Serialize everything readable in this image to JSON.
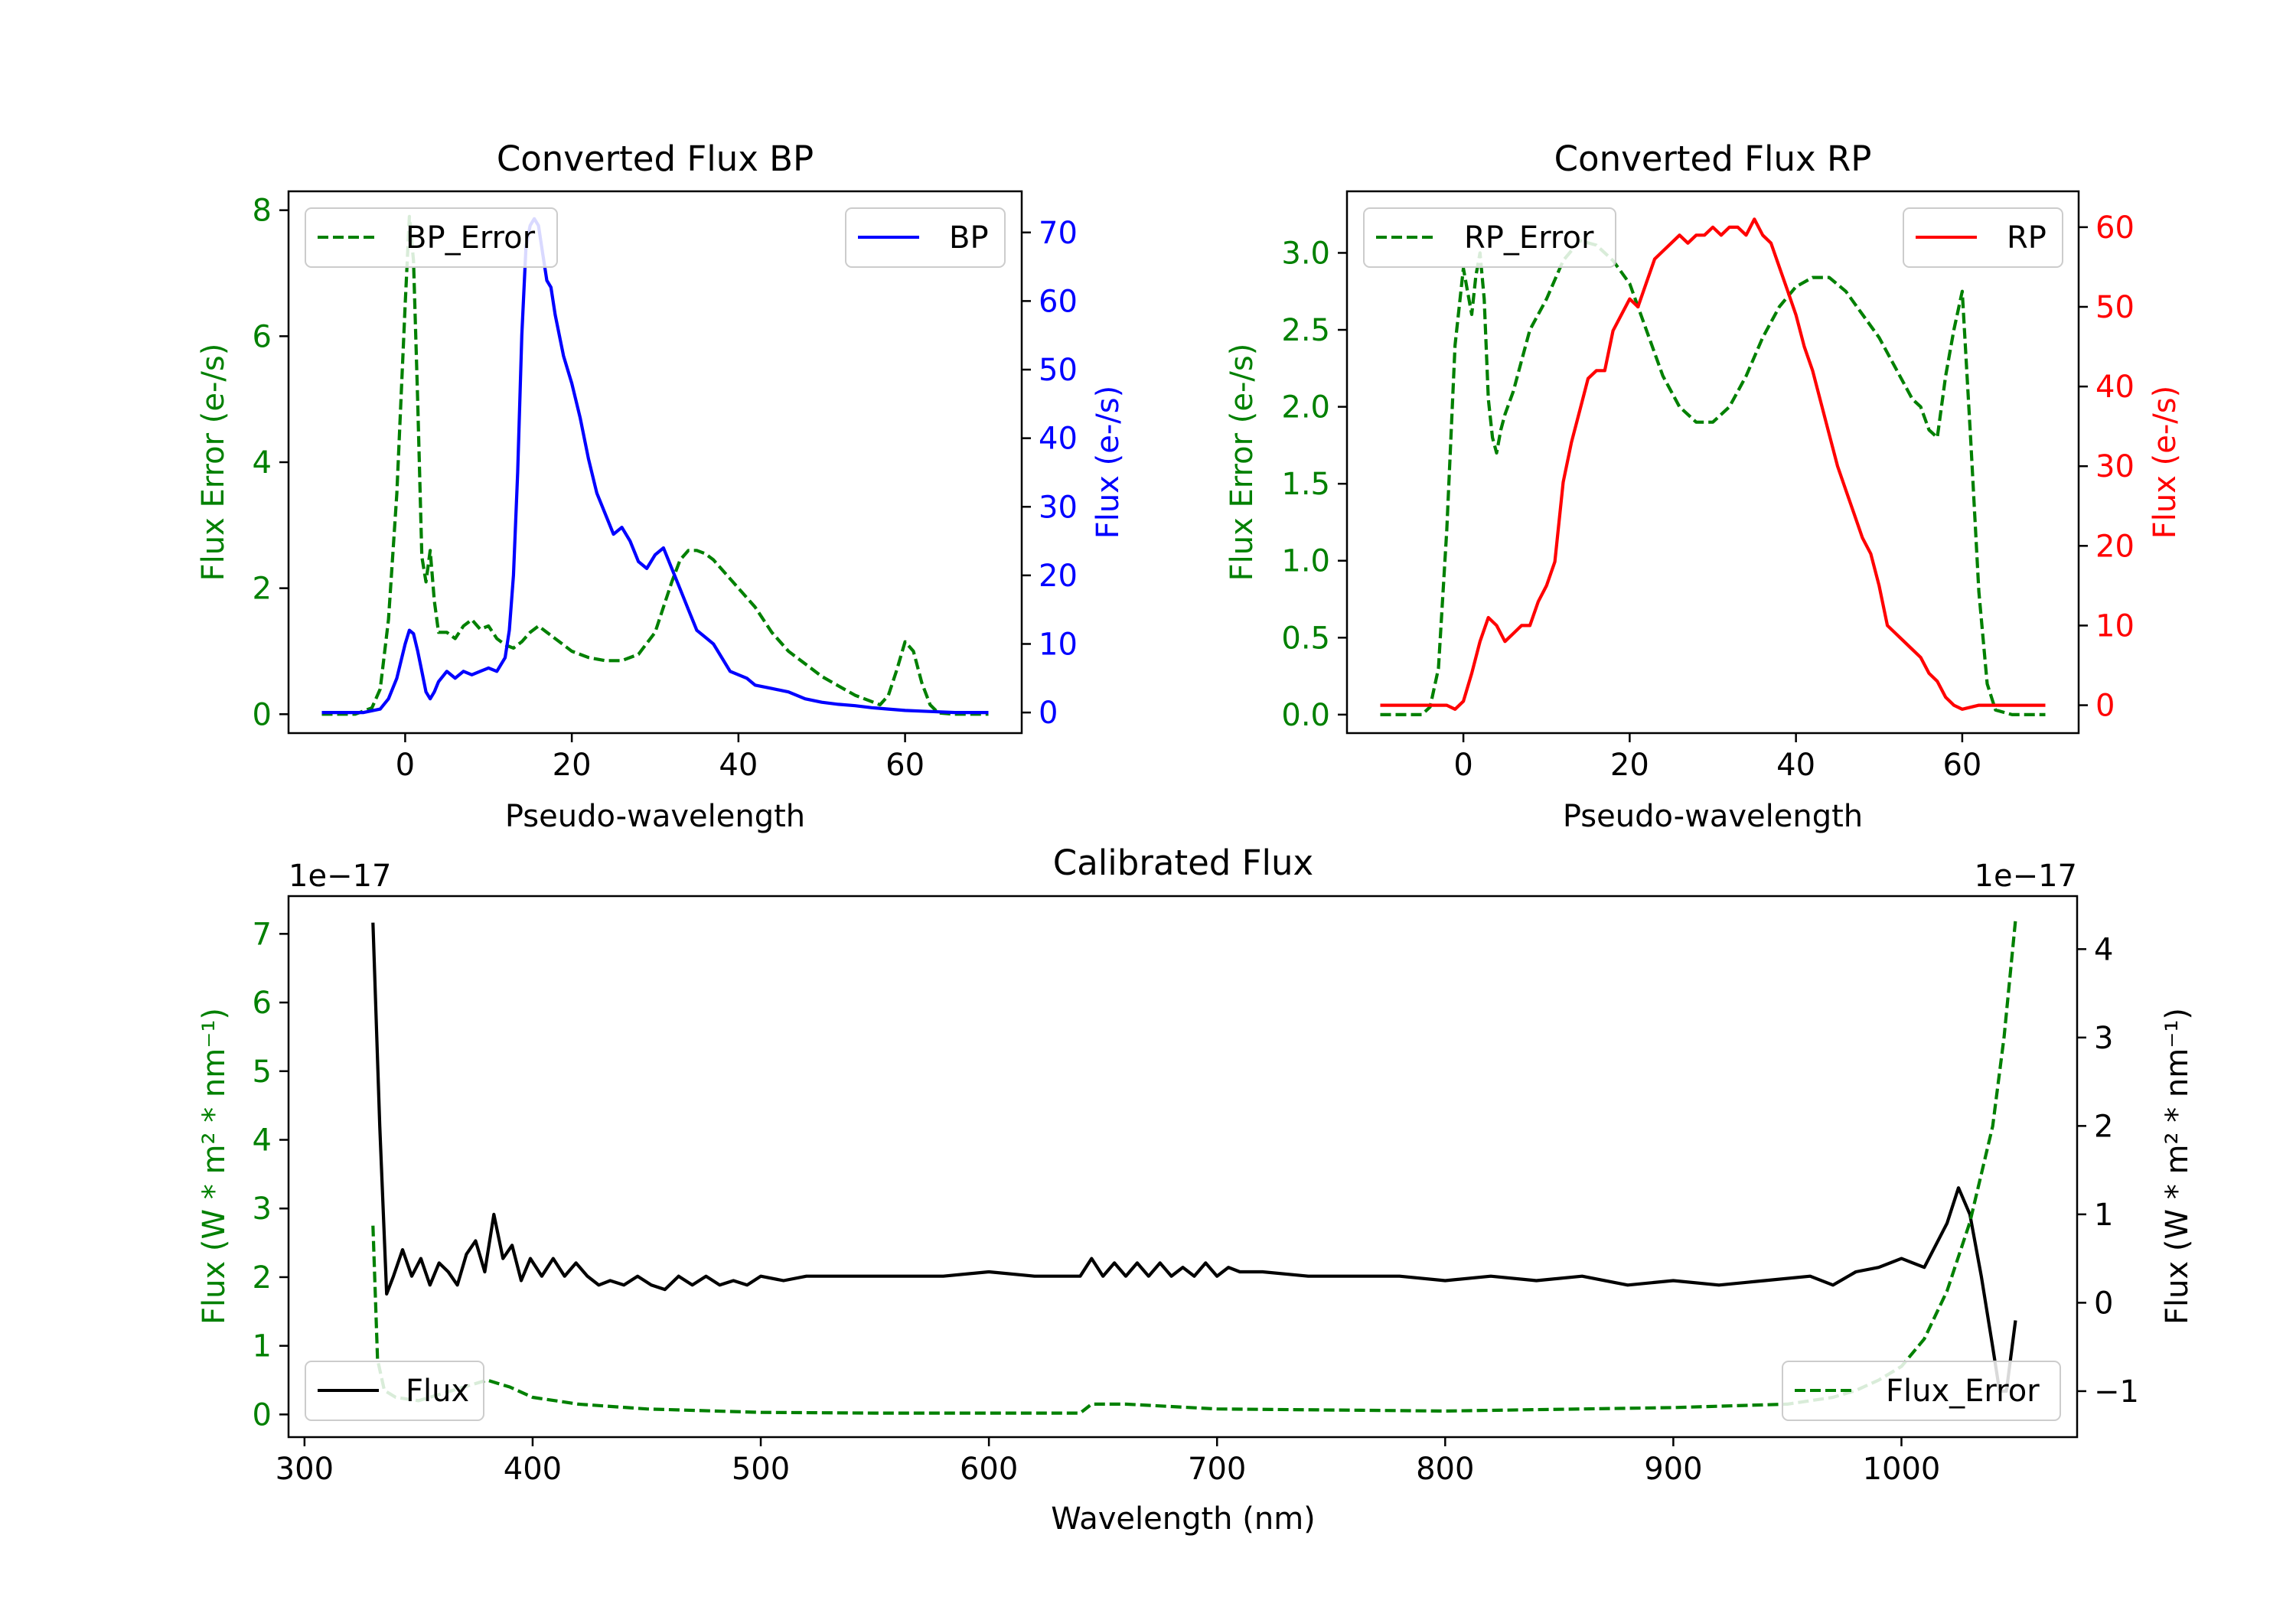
{
  "chart_data": [
    {
      "type": "line",
      "title": "Converted Flux BP",
      "xlabel": "Pseudo-wavelength",
      "xlim": [
        -14,
        74
      ],
      "xticks": [
        0,
        20,
        40,
        60
      ],
      "left_axis": {
        "label": "Flux Error (e-/s)",
        "color": "#008000",
        "ylim": [
          -0.3,
          8.3
        ],
        "ticks": [
          0,
          2,
          4,
          6,
          8
        ]
      },
      "right_axis": {
        "label": "Flux (e-/s)",
        "color": "#0000ff",
        "ylim": [
          -3,
          76
        ],
        "ticks": [
          0,
          10,
          20,
          30,
          40,
          50,
          60,
          70
        ]
      },
      "series": [
        {
          "name": "BP_Error",
          "axis": "left",
          "style": "dashed",
          "color": "#008000",
          "x": [
            -10,
            -6,
            -4,
            -3,
            -2,
            -1,
            0,
            0.5,
            1,
            1.5,
            2,
            2.5,
            3,
            3.5,
            4,
            5,
            6,
            7,
            8,
            9,
            10,
            11,
            12,
            13,
            14,
            15,
            16,
            17,
            18,
            19,
            20,
            22,
            24,
            26,
            28,
            30,
            31,
            32,
            33,
            34,
            35,
            36,
            37,
            38,
            40,
            42,
            44,
            46,
            48,
            50,
            52,
            54,
            56,
            57,
            58,
            59,
            60,
            61,
            62,
            63,
            64,
            66,
            70
          ],
          "values": [
            0,
            0,
            0.1,
            0.4,
            1.5,
            3.5,
            6.5,
            7.9,
            7.2,
            5.0,
            2.5,
            2.1,
            2.6,
            1.8,
            1.3,
            1.3,
            1.2,
            1.4,
            1.5,
            1.35,
            1.4,
            1.2,
            1.1,
            1.05,
            1.15,
            1.3,
            1.4,
            1.3,
            1.2,
            1.1,
            1.0,
            0.9,
            0.85,
            0.85,
            0.95,
            1.3,
            1.7,
            2.1,
            2.45,
            2.6,
            2.6,
            2.55,
            2.45,
            2.3,
            2.0,
            1.7,
            1.3,
            1.0,
            0.8,
            0.6,
            0.45,
            0.3,
            0.2,
            0.15,
            0.3,
            0.7,
            1.15,
            1.0,
            0.5,
            0.15,
            0.02,
            0,
            0
          ]
        },
        {
          "name": "BP",
          "axis": "right",
          "style": "solid",
          "color": "#0000ff",
          "x": [
            -10,
            -5,
            -3,
            -2,
            -1,
            0,
            0.5,
            1,
            1.5,
            2,
            2.5,
            3,
            3.5,
            4,
            5,
            6,
            7,
            8,
            9,
            10,
            11,
            12,
            12.5,
            13,
            13.5,
            14,
            14.5,
            15,
            15.5,
            16,
            16.5,
            17,
            17.5,
            18,
            19,
            20,
            21,
            22,
            23,
            24,
            25,
            26,
            27,
            28,
            29,
            30,
            31,
            32,
            33,
            34,
            35,
            36,
            37,
            38,
            39,
            40,
            41,
            42,
            44,
            46,
            48,
            50,
            52,
            54,
            56,
            58,
            60,
            62,
            64,
            66,
            70
          ],
          "values": [
            0,
            0,
            0.5,
            2,
            5,
            10,
            12,
            11.5,
            9,
            6,
            3,
            2,
            3,
            4.5,
            6,
            5,
            6,
            5.5,
            6,
            6.5,
            6,
            8,
            12,
            20,
            35,
            55,
            68,
            71,
            72,
            71,
            67,
            63,
            62,
            58,
            52,
            48,
            43,
            37,
            32,
            29,
            26,
            27,
            25,
            22,
            21,
            23,
            24,
            21,
            18,
            15,
            12,
            11,
            10,
            8,
            6,
            5.5,
            5,
            4,
            3.5,
            3,
            2,
            1.5,
            1.2,
            1,
            0.7,
            0.5,
            0.3,
            0.2,
            0.1,
            0,
            0
          ]
        }
      ],
      "legend": [
        {
          "label": "BP_Error",
          "position": "upper-left"
        },
        {
          "label": "BP",
          "position": "upper-right"
        }
      ]
    },
    {
      "type": "line",
      "title": "Converted Flux RP",
      "xlabel": "Pseudo-wavelength",
      "xlim": [
        -14,
        74
      ],
      "xticks": [
        0,
        20,
        40,
        60
      ],
      "left_axis": {
        "label": "Flux Error (e-/s)",
        "color": "#008000",
        "ylim": [
          -0.12,
          3.4
        ],
        "ticks": [
          0.0,
          0.5,
          1.0,
          1.5,
          2.0,
          2.5,
          3.0
        ]
      },
      "right_axis": {
        "label": "Flux (e-/s)",
        "color": "#ff0000",
        "ylim": [
          -3.5,
          64.5
        ],
        "ticks": [
          0,
          10,
          20,
          30,
          40,
          50,
          60
        ]
      },
      "series": [
        {
          "name": "RP_Error",
          "axis": "left",
          "style": "dashed",
          "color": "#008000",
          "x": [
            -10,
            -5,
            -4,
            -3,
            -2,
            -1,
            0,
            0.5,
            1,
            1.5,
            2,
            2.5,
            3,
            3.5,
            4,
            4.5,
            5,
            6,
            7,
            8,
            10,
            12,
            14,
            16,
            18,
            20,
            22,
            24,
            26,
            28,
            30,
            32,
            34,
            36,
            38,
            40,
            42,
            44,
            46,
            48,
            50,
            52,
            54,
            55,
            56,
            57,
            58,
            59,
            60,
            61,
            62,
            63,
            64,
            66,
            70
          ],
          "values": [
            0,
            0,
            0.05,
            0.3,
            1.2,
            2.4,
            2.9,
            2.75,
            2.6,
            2.85,
            3.0,
            2.7,
            2.05,
            1.8,
            1.7,
            1.85,
            1.95,
            2.1,
            2.3,
            2.5,
            2.7,
            2.95,
            3.08,
            3.05,
            2.95,
            2.8,
            2.5,
            2.2,
            2.0,
            1.9,
            1.9,
            2.0,
            2.2,
            2.45,
            2.65,
            2.78,
            2.84,
            2.84,
            2.75,
            2.6,
            2.45,
            2.25,
            2.05,
            2.0,
            1.85,
            1.8,
            2.2,
            2.5,
            2.75,
            1.8,
            0.8,
            0.2,
            0.03,
            0,
            0
          ]
        },
        {
          "name": "RP",
          "axis": "right",
          "style": "solid",
          "color": "#ff0000",
          "x": [
            -10,
            -5,
            -2,
            -1,
            0,
            1,
            2,
            3,
            4,
            5,
            6,
            7,
            8,
            9,
            10,
            11,
            12,
            13,
            14,
            15,
            16,
            17,
            18,
            19,
            20,
            21,
            22,
            23,
            24,
            25,
            26,
            27,
            28,
            29,
            30,
            31,
            32,
            33,
            34,
            35,
            36,
            37,
            38,
            39,
            40,
            41,
            42,
            43,
            44,
            45,
            46,
            47,
            48,
            49,
            50,
            51,
            52,
            53,
            54,
            55,
            56,
            57,
            58,
            59,
            60,
            62,
            65,
            70
          ],
          "values": [
            0,
            0,
            0,
            -0.5,
            0.5,
            4,
            8,
            11,
            10,
            8,
            9,
            10,
            10,
            13,
            15,
            18,
            28,
            33,
            37,
            41,
            42,
            42,
            47,
            49,
            51,
            50,
            53,
            56,
            57,
            58,
            59,
            58,
            59,
            59,
            60,
            59,
            60,
            60,
            59,
            61,
            59,
            58,
            55,
            52,
            49,
            45,
            42,
            38,
            34,
            30,
            27,
            24,
            21,
            19,
            15,
            10,
            9,
            8,
            7,
            6,
            4,
            3,
            1,
            0,
            -0.5,
            0,
            0,
            0
          ]
        }
      ],
      "legend": [
        {
          "label": "RP_Error",
          "position": "upper-left"
        },
        {
          "label": "RP",
          "position": "upper-right"
        }
      ]
    },
    {
      "type": "line",
      "title": "Calibrated Flux",
      "xlabel": "Wavelength (nm)",
      "xlim": [
        293,
        1077
      ],
      "xticks": [
        300,
        400,
        500,
        600,
        700,
        800,
        900,
        1000
      ],
      "left_axis": {
        "label": "Flux (W * m² * nm⁻¹)",
        "color": "#008000",
        "offset_text": "1e−17",
        "ylim": [
          -0.33,
          7.55
        ],
        "ticks": [
          0,
          1,
          2,
          3,
          4,
          5,
          6,
          7
        ]
      },
      "right_axis": {
        "label": "Flux (W * m² * nm⁻¹)",
        "color": "#000000",
        "offset_text": "1e−17",
        "ylim": [
          -1.52,
          4.6
        ],
        "ticks": [
          -1,
          0,
          1,
          2,
          3,
          4
        ]
      },
      "series": [
        {
          "name": "Flux",
          "axis": "right",
          "style": "solid",
          "color": "#000000",
          "x": [
            330,
            333,
            336,
            339,
            343,
            347,
            351,
            355,
            359,
            363,
            367,
            371,
            375,
            379,
            383,
            387,
            391,
            395,
            399,
            404,
            409,
            414,
            419,
            424,
            429,
            434,
            440,
            446,
            452,
            458,
            464,
            470,
            476,
            482,
            488,
            494,
            500,
            510,
            520,
            540,
            560,
            580,
            600,
            620,
            640,
            645,
            650,
            655,
            660,
            665,
            670,
            675,
            680,
            685,
            690,
            695,
            700,
            705,
            710,
            720,
            740,
            760,
            780,
            800,
            820,
            840,
            860,
            880,
            900,
            920,
            940,
            960,
            970,
            980,
            990,
            1000,
            1010,
            1020,
            1025,
            1030,
            1035,
            1040,
            1043,
            1046,
            1050
          ],
          "values": [
            4.3,
            2.0,
            0.1,
            0.3,
            0.6,
            0.3,
            0.5,
            0.2,
            0.45,
            0.35,
            0.2,
            0.55,
            0.7,
            0.35,
            1.0,
            0.5,
            0.65,
            0.25,
            0.5,
            0.3,
            0.5,
            0.3,
            0.45,
            0.3,
            0.2,
            0.25,
            0.2,
            0.3,
            0.2,
            0.15,
            0.3,
            0.2,
            0.3,
            0.2,
            0.25,
            0.2,
            0.3,
            0.25,
            0.3,
            0.3,
            0.3,
            0.3,
            0.35,
            0.3,
            0.3,
            0.5,
            0.3,
            0.45,
            0.3,
            0.45,
            0.3,
            0.45,
            0.3,
            0.4,
            0.3,
            0.45,
            0.3,
            0.4,
            0.35,
            0.35,
            0.3,
            0.3,
            0.3,
            0.25,
            0.3,
            0.25,
            0.3,
            0.2,
            0.25,
            0.2,
            0.25,
            0.3,
            0.2,
            0.35,
            0.4,
            0.5,
            0.4,
            0.9,
            1.3,
            1.0,
            0.3,
            -0.5,
            -1.0,
            -1.0,
            -0.2
          ]
        },
        {
          "name": "Flux_Error",
          "axis": "left",
          "style": "dashed",
          "color": "#008000",
          "x": [
            330,
            332,
            335,
            340,
            350,
            360,
            370,
            380,
            390,
            400,
            420,
            450,
            500,
            550,
            600,
            640,
            645,
            660,
            700,
            800,
            900,
            950,
            970,
            980,
            990,
            1000,
            1010,
            1020,
            1030,
            1040,
            1045,
            1050
          ],
          "values": [
            2.75,
            0.8,
            0.35,
            0.25,
            0.2,
            0.3,
            0.4,
            0.5,
            0.4,
            0.25,
            0.15,
            0.08,
            0.03,
            0.02,
            0.02,
            0.02,
            0.15,
            0.15,
            0.08,
            0.05,
            0.1,
            0.15,
            0.25,
            0.35,
            0.5,
            0.7,
            1.1,
            1.8,
            2.8,
            4.2,
            5.5,
            7.2
          ]
        }
      ],
      "legend": [
        {
          "label": "Flux",
          "position": "lower-left"
        },
        {
          "label": "Flux_Error",
          "position": "lower-right"
        }
      ]
    }
  ]
}
